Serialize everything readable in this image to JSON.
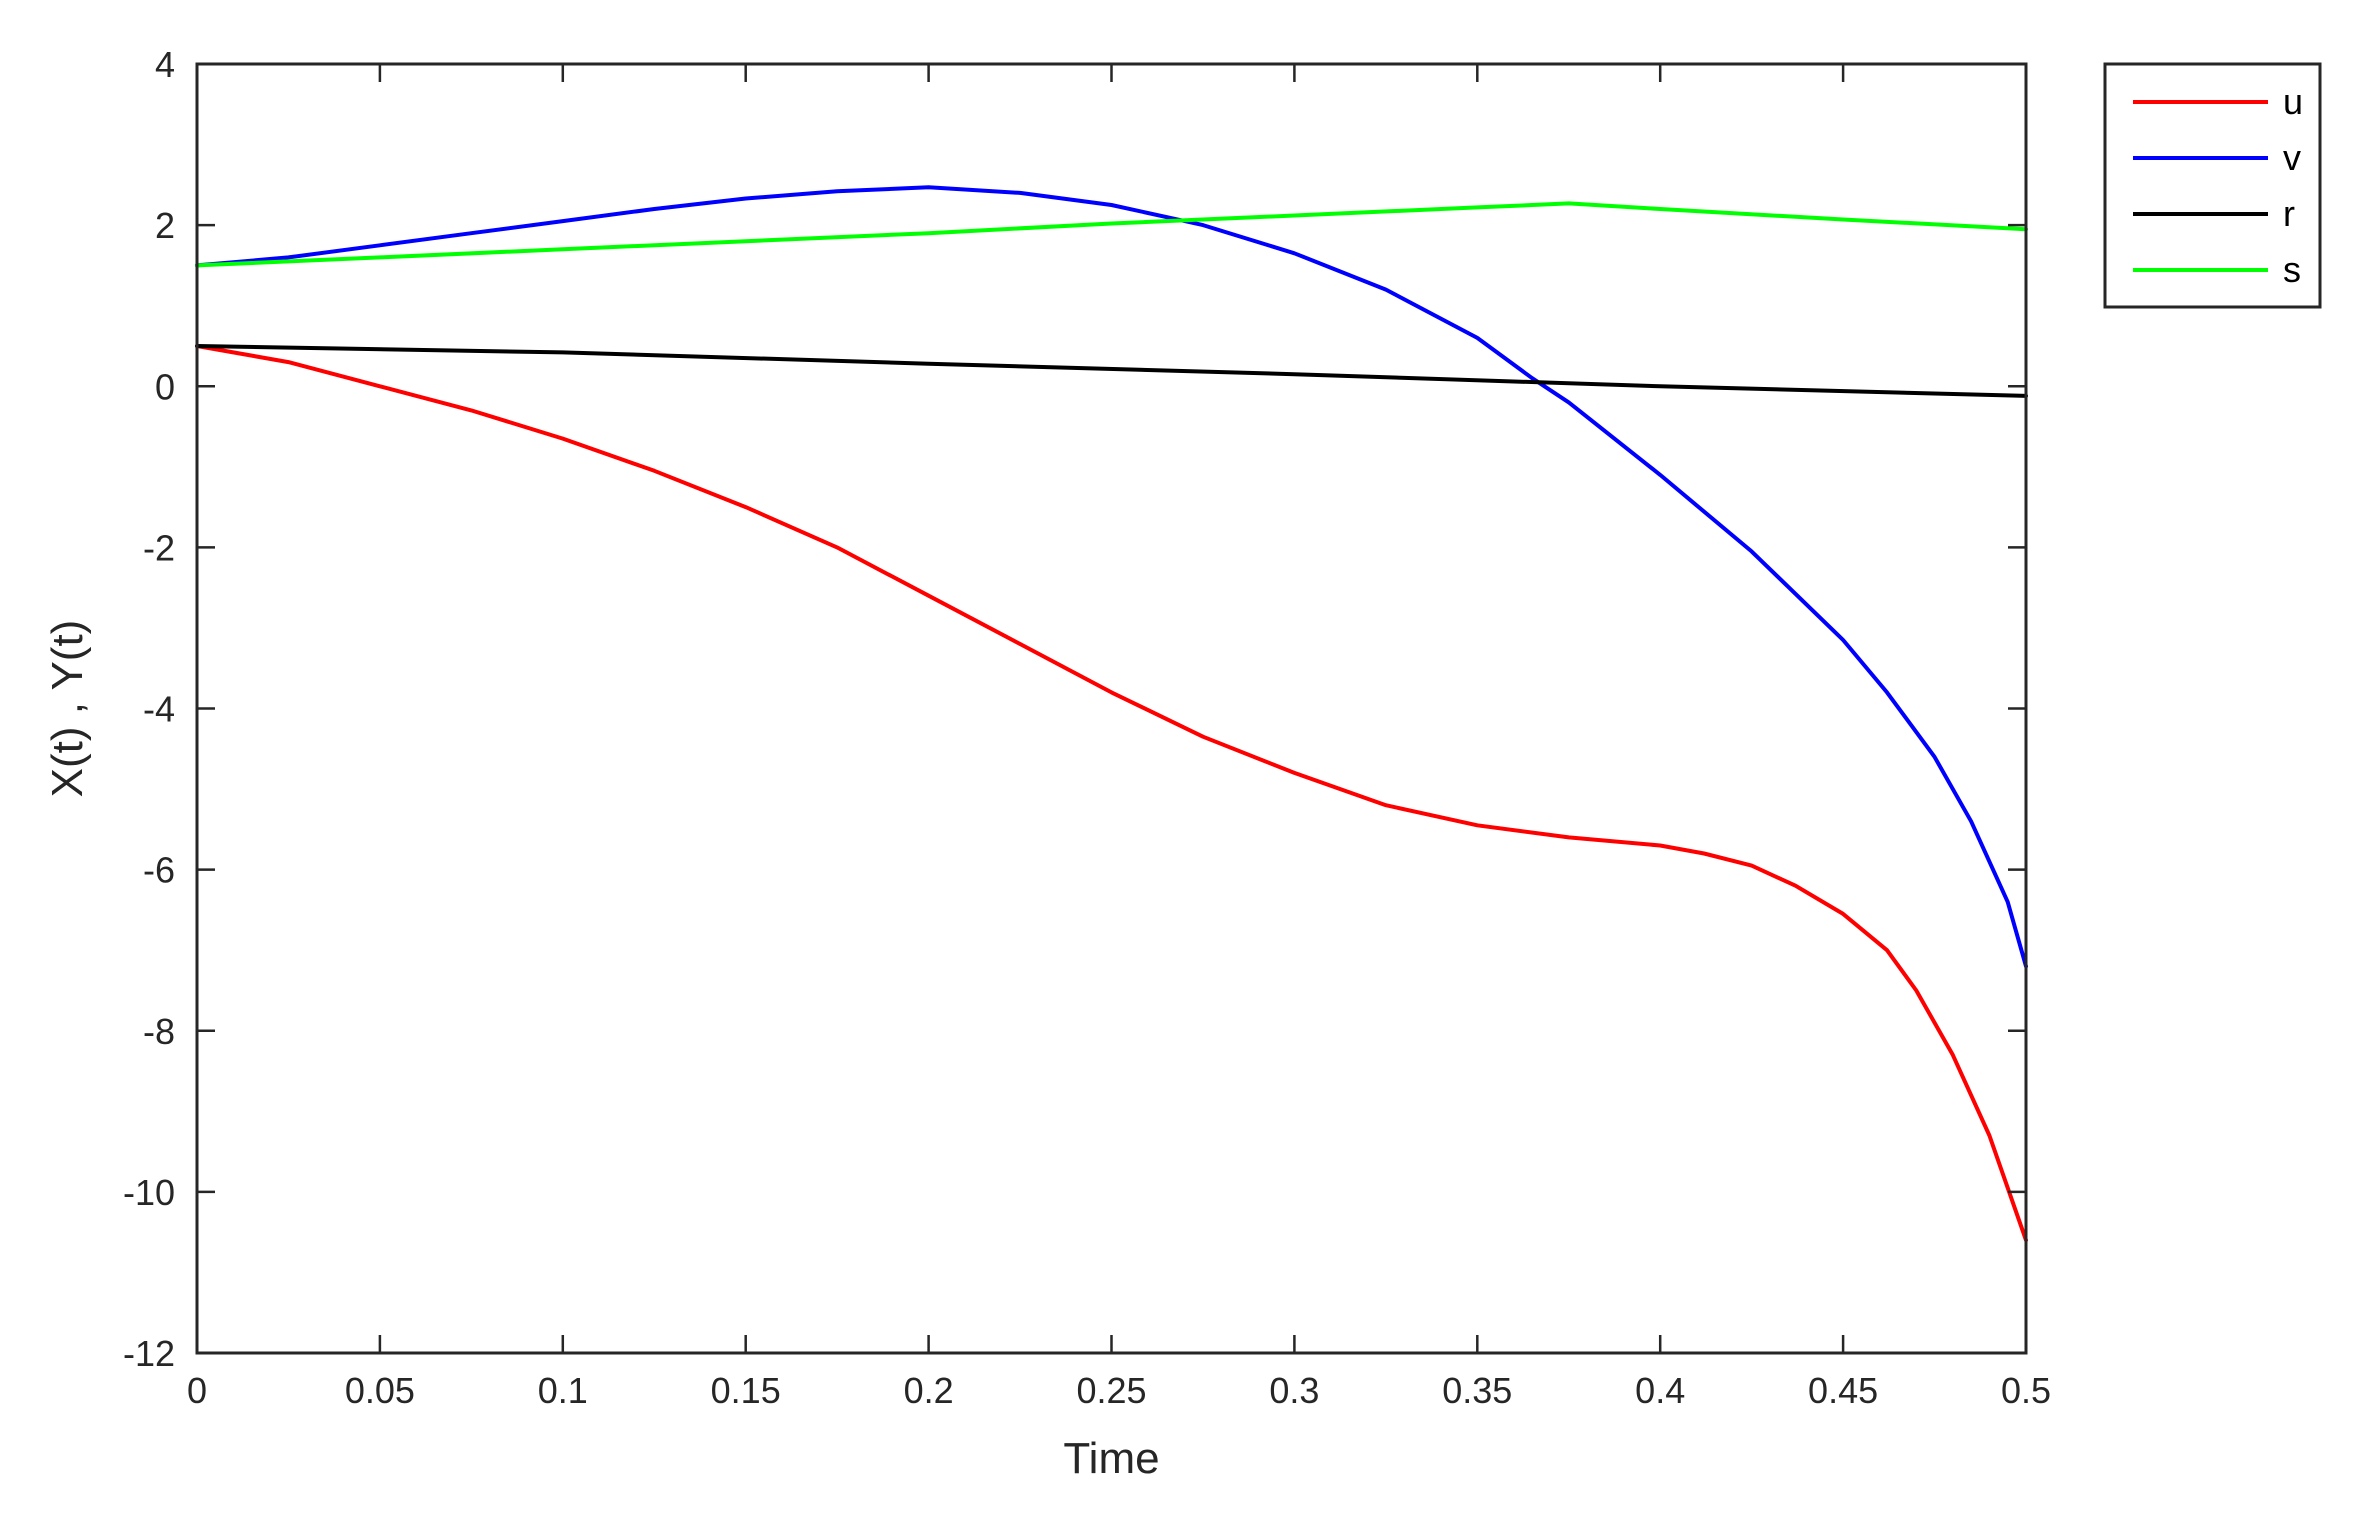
{
  "chart_data": {
    "type": "line",
    "title": "",
    "xlabel": "Time",
    "ylabel": "X(t) , Y(t)",
    "xlim": [
      0,
      0.5
    ],
    "ylim": [
      -12,
      4
    ],
    "xticks": [
      0,
      0.05,
      0.1,
      0.15,
      0.2,
      0.25,
      0.3,
      0.35,
      0.4,
      0.45,
      0.5
    ],
    "xtick_labels": [
      "0",
      "0.05",
      "0.1",
      "0.15",
      "0.2",
      "0.25",
      "0.3",
      "0.35",
      "0.4",
      "0.45",
      "0.5"
    ],
    "yticks": [
      4,
      2,
      0,
      -2,
      -4,
      -6,
      -8,
      -10,
      -12
    ],
    "ytick_labels": [
      "4",
      "2",
      "0",
      "-2",
      "-4",
      "-6",
      "-8",
      "-10",
      "-12"
    ],
    "grid": false,
    "legend_position": "outside-top-right",
    "series": [
      {
        "name": "u",
        "color": "#ff0000",
        "x": [
          0,
          0.025,
          0.05,
          0.075,
          0.1,
          0.125,
          0.15,
          0.175,
          0.2,
          0.225,
          0.25,
          0.275,
          0.3,
          0.325,
          0.35,
          0.375,
          0.4,
          0.412,
          0.425,
          0.437,
          0.45,
          0.462,
          0.47,
          0.48,
          0.49,
          0.5
        ],
        "y": [
          0.5,
          0.3,
          0.0,
          -0.3,
          -0.65,
          -1.05,
          -1.5,
          -2.0,
          -2.6,
          -3.2,
          -3.8,
          -4.35,
          -4.8,
          -5.2,
          -5.45,
          -5.6,
          -5.7,
          -5.8,
          -5.95,
          -6.2,
          -6.55,
          -7.0,
          -7.5,
          -8.3,
          -9.3,
          -10.6
        ]
      },
      {
        "name": "v",
        "color": "#0000ff",
        "x": [
          0,
          0.025,
          0.05,
          0.075,
          0.1,
          0.125,
          0.15,
          0.175,
          0.2,
          0.225,
          0.25,
          0.275,
          0.3,
          0.325,
          0.35,
          0.365,
          0.375,
          0.4,
          0.425,
          0.45,
          0.462,
          0.475,
          0.485,
          0.495,
          0.5
        ],
        "y": [
          1.5,
          1.6,
          1.75,
          1.9,
          2.05,
          2.2,
          2.33,
          2.42,
          2.47,
          2.4,
          2.25,
          2.0,
          1.65,
          1.2,
          0.6,
          0.1,
          -0.2,
          -1.1,
          -2.05,
          -3.15,
          -3.8,
          -4.6,
          -5.4,
          -6.4,
          -7.2
        ]
      },
      {
        "name": "r",
        "color": "#000000",
        "x": [
          0,
          0.1,
          0.2,
          0.3,
          0.4,
          0.5
        ],
        "y": [
          0.5,
          0.42,
          0.28,
          0.15,
          0.0,
          -0.12
        ]
      },
      {
        "name": "s",
        "color": "#00ff00",
        "x": [
          0,
          0.05,
          0.1,
          0.15,
          0.2,
          0.25,
          0.3,
          0.35,
          0.375,
          0.4,
          0.45,
          0.5
        ],
        "y": [
          1.5,
          1.6,
          1.7,
          1.8,
          1.9,
          2.02,
          2.12,
          2.22,
          2.27,
          2.2,
          2.07,
          1.95
        ]
      }
    ]
  }
}
